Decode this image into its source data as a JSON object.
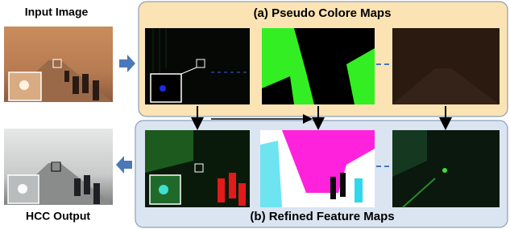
{
  "labels": {
    "input": "Input Image",
    "output": "HCC Output"
  },
  "panels": {
    "top_title": "(a) Pseudo Colore Maps",
    "bottom_title": "(b) Refined Feature Maps"
  }
}
